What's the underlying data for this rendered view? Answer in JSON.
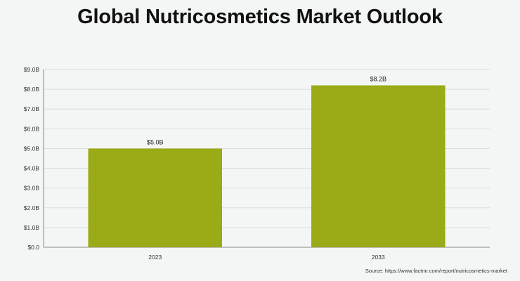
{
  "chart_data": {
    "type": "bar",
    "title": "Global Nutricosmetics Market Outlook",
    "categories": [
      "2023",
      "2033"
    ],
    "values": [
      5.0,
      8.2
    ],
    "data_labels": [
      "$5.0B",
      "$8.2B"
    ],
    "xlabel": "",
    "ylabel": "",
    "ylim": [
      0,
      9
    ],
    "yticks": [
      0,
      1,
      2,
      3,
      4,
      5,
      6,
      7,
      8,
      9
    ],
    "ytick_labels": [
      "$0.0",
      "$1.0B",
      "$2.0B",
      "$3.0B",
      "$4.0B",
      "$5.0B",
      "$6.0B",
      "$7.0B",
      "$8.0B",
      "$9.0B"
    ],
    "grid": true,
    "bar_color": "#9aab17",
    "grid_color": "#d9dedc",
    "axis_color": "#8a8a8a"
  },
  "source": "Source: https://www.factmr.com/report/nutricosmetics-market"
}
